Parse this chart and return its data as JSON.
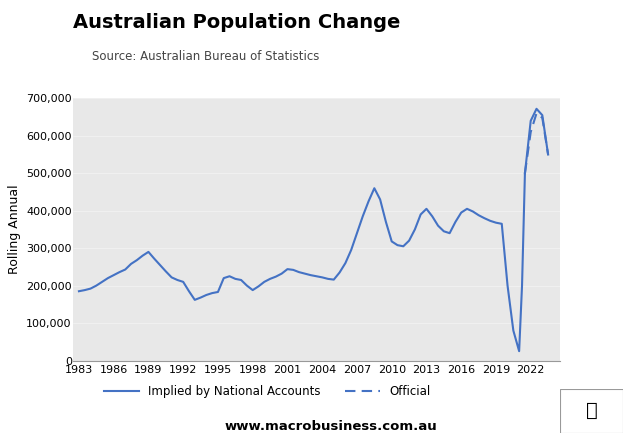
{
  "title": "Australian Population Change",
  "subtitle": "Source: Australian Bureau of Statistics",
  "ylabel": "Rolling Annual",
  "background_color": "#e8e8e8",
  "figure_bg": "#ffffff",
  "line_color": "#4472c4",
  "ylim": [
    0,
    700000
  ],
  "yticks": [
    0,
    100000,
    200000,
    300000,
    400000,
    500000,
    600000,
    700000
  ],
  "ytick_labels": [
    "0",
    "100,000",
    "200,000",
    "300,000",
    "400,000",
    "500,000",
    "600,000",
    "700,000"
  ],
  "xticks": [
    1983,
    1986,
    1989,
    1992,
    1995,
    1998,
    2001,
    2004,
    2007,
    2010,
    2013,
    2016,
    2019,
    2022
  ],
  "website": "www.macrobusiness.com.au",
  "legend_solid": "Implied by National Accounts",
  "legend_dashed": "Official",
  "macro_box_color": "#cc1111",
  "solid_series_x": [
    1983,
    1983.5,
    1984,
    1984.5,
    1985,
    1985.5,
    1986,
    1986.5,
    1987,
    1987.5,
    1988,
    1988.5,
    1989,
    1989.5,
    1990,
    1990.5,
    1991,
    1991.5,
    1992,
    1992.5,
    1993,
    1993.5,
    1994,
    1994.5,
    1995,
    1995.5,
    1996,
    1996.5,
    1997,
    1997.5,
    1998,
    1998.5,
    1999,
    1999.5,
    2000,
    2000.5,
    2001,
    2001.5,
    2002,
    2002.5,
    2003,
    2003.5,
    2004,
    2004.5,
    2005,
    2005.5,
    2006,
    2006.5,
    2007,
    2007.5,
    2008,
    2008.5,
    2009,
    2009.5,
    2010,
    2010.5,
    2011,
    2011.5,
    2012,
    2012.5,
    2013,
    2013.5,
    2014,
    2014.5,
    2015,
    2015.5,
    2016,
    2016.5,
    2017,
    2017.5,
    2018,
    2018.5,
    2019,
    2019.5,
    2020,
    2020.5,
    2021,
    2021.25,
    2021.5
  ],
  "solid_series_y": [
    185000,
    188000,
    192000,
    200000,
    210000,
    220000,
    228000,
    236000,
    243000,
    258000,
    268000,
    280000,
    290000,
    272000,
    255000,
    238000,
    222000,
    215000,
    210000,
    185000,
    162000,
    168000,
    175000,
    180000,
    183000,
    220000,
    225000,
    218000,
    215000,
    200000,
    188000,
    198000,
    210000,
    218000,
    224000,
    232000,
    244000,
    242000,
    236000,
    232000,
    228000,
    225000,
    222000,
    218000,
    216000,
    235000,
    260000,
    295000,
    340000,
    385000,
    425000,
    460000,
    430000,
    370000,
    318000,
    308000,
    305000,
    320000,
    350000,
    390000,
    405000,
    385000,
    360000,
    345000,
    340000,
    370000,
    395000,
    405000,
    398000,
    388000,
    380000,
    373000,
    368000,
    365000,
    200000,
    80000,
    25000,
    200000,
    500000
  ],
  "dashed_series_x": [
    2021.5,
    2022,
    2022.5,
    2023,
    2023.5
  ],
  "dashed_series_y": [
    500000,
    610000,
    660000,
    648000,
    550000
  ],
  "solid_end_x": [
    2021.5,
    2022,
    2022.5,
    2023,
    2023.5
  ],
  "solid_end_y": [
    500000,
    640000,
    672000,
    655000,
    550000
  ],
  "xlim": [
    1982.5,
    2024.5
  ]
}
